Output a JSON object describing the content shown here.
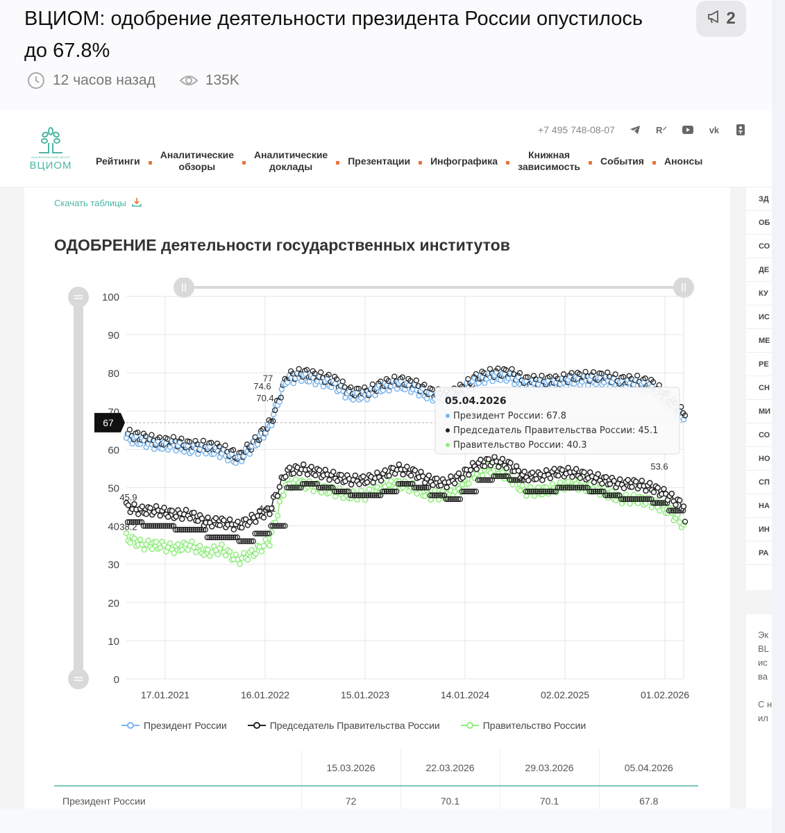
{
  "article": {
    "title": "ВЦИОМ: одобрение деятельности президента России опустилось до 67.8%",
    "time": "12 часов назад",
    "views": "135K",
    "badge_count": "2",
    "icons": {
      "time": "clock-icon",
      "views": "eye-icon",
      "badge": "megaphone-icon"
    }
  },
  "site": {
    "logo_small": "АНАЛИТИЧЕСКИЙ ЦЕНТР",
    "logo_main": "ВЦИОМ",
    "phone": "+7 495 748-08-07",
    "social_icons": [
      "telegram-icon",
      "rutube-icon",
      "youtube-icon",
      "vk-icon",
      "odnoklassniki-icon"
    ],
    "nav": [
      {
        "label": "Рейтинги"
      },
      {
        "label": "Аналитические\nобзоры"
      },
      {
        "label": "Аналитические\nдоклады"
      },
      {
        "label": "Презентации"
      },
      {
        "label": "Инфографика"
      },
      {
        "label": "Книжная\nзависимость"
      },
      {
        "label": "События"
      },
      {
        "label": "Анонсы"
      }
    ]
  },
  "content": {
    "download_label": "Скачать таблицы",
    "chart_title": "ОДОБРЕНИЕ деятельности государственных институтов"
  },
  "sidebar": {
    "items": [
      "ЗД",
      "ОБ",
      "СО",
      "ДЕ",
      "КУ",
      "ИС",
      "МЕ",
      "РЕ",
      "СН",
      "МИ",
      "СО",
      "НО",
      "СП",
      "НА",
      "ИН",
      "РА"
    ],
    "text_lines": [
      "Эк",
      "BL",
      "ис",
      "ва",
      "",
      "С н",
      "ил"
    ]
  },
  "chart_data": {
    "type": "line",
    "title": "ОДОБРЕНИЕ деятельности государственных институтов",
    "xlabel": "",
    "ylabel": "",
    "ylim": [
      0,
      100
    ],
    "yticks": [
      0,
      10,
      20,
      30,
      40,
      50,
      60,
      70,
      80,
      90,
      100
    ],
    "xticks": [
      "17.01.2021",
      "16.01.2022",
      "15.01.2023",
      "14.01.2024",
      "02.02.2025",
      "01.02.2026"
    ],
    "grid": true,
    "legend_position": "bottom",
    "crosshair_value": "67",
    "colors": {
      "president": "#7cb5ec",
      "pm": "#222222",
      "government": "#90ed7d"
    },
    "x": [
      "2020-10",
      "2020-12",
      "2021-02",
      "2021-04",
      "2021-06",
      "2021-08",
      "2021-10",
      "2021-12",
      "2022-02",
      "2022-03",
      "2022-04",
      "2022-06",
      "2022-08",
      "2022-10",
      "2022-12",
      "2023-02",
      "2023-04",
      "2023-06",
      "2023-08",
      "2023-10",
      "2023-12",
      "2024-02",
      "2024-04",
      "2024-06",
      "2024-08",
      "2024-10",
      "2024-12",
      "2025-02",
      "2025-04",
      "2025-06",
      "2025-08",
      "2025-10",
      "2025-12",
      "2026-02",
      "2026-03",
      "2026-04"
    ],
    "series": [
      {
        "name": "Президент России",
        "values": [
          63,
          62,
          61,
          61,
          60,
          60,
          59,
          57,
          61,
          66,
          78,
          79,
          78,
          77,
          74,
          74,
          76,
          77,
          76,
          74,
          73,
          75,
          78,
          79,
          79,
          77,
          77,
          77,
          78,
          78,
          78,
          77,
          77,
          76,
          72,
          67.8
        ]
      },
      {
        "name": "Председатель Правительства России",
        "values": [
          45,
          44,
          44,
          43,
          43,
          41,
          41,
          40,
          42,
          44,
          54,
          55,
          54,
          53,
          52,
          52,
          53,
          55,
          54,
          52,
          51,
          53,
          56,
          57,
          56,
          53,
          53,
          54,
          54,
          53,
          52,
          51,
          51,
          50,
          48,
          45.1
        ]
      },
      {
        "name": "Правительство России",
        "values": [
          37,
          35,
          35,
          34,
          35,
          33,
          34,
          31,
          33,
          36,
          51,
          51,
          50,
          49,
          48,
          48,
          50,
          51,
          50,
          48,
          48,
          50,
          54,
          55,
          53,
          49,
          49,
          50,
          51,
          50,
          49,
          47,
          47,
          46,
          44,
          40.3
        ]
      }
    ],
    "data_labels": [
      "70.4",
      "74.6",
      "77",
      "44.1",
      "53.6",
      "45.9",
      "38.2"
    ],
    "tooltip": {
      "date": "05.04.2026",
      "rows": [
        {
          "label": "Президент России",
          "value": "67.8",
          "color": "#7cb5ec"
        },
        {
          "label": "Председатель Правительства России",
          "value": "45.1",
          "color": "#222222"
        },
        {
          "label": "Правительство России",
          "value": "40.3",
          "color": "#90ed7d"
        }
      ]
    }
  },
  "table": {
    "headers": [
      "",
      "15.03.2026",
      "22.03.2026",
      "29.03.2026",
      "05.04.2026"
    ],
    "rows": [
      {
        "label": "Президент России",
        "values": [
          "72",
          "70.1",
          "70.1",
          "67.8"
        ]
      }
    ]
  }
}
